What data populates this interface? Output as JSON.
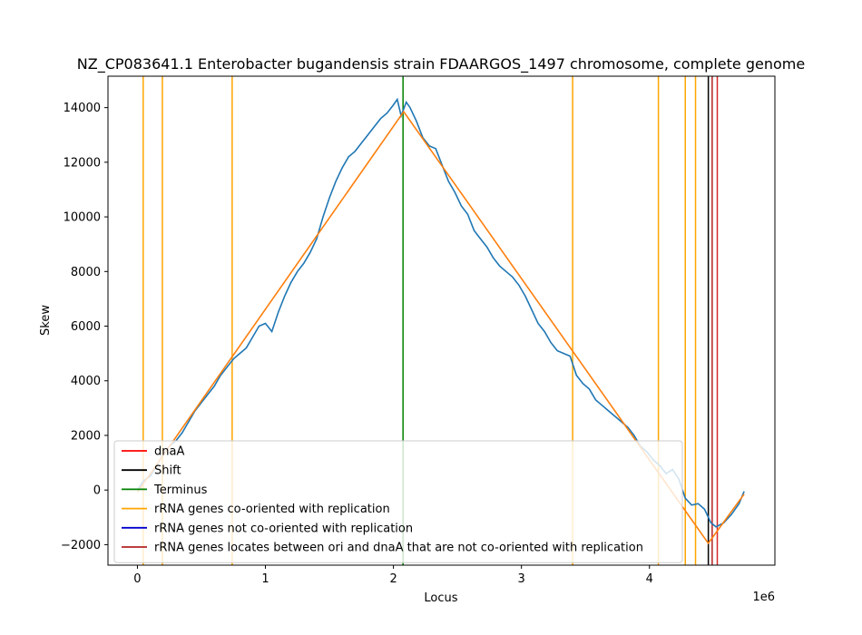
{
  "chart_data": {
    "type": "line",
    "title": "NZ_CP083641.1 Enterobacter bugandensis strain FDAARGOS_1497 chromosome, complete genome",
    "xlabel": "Locus",
    "ylabel": "Skew",
    "x_offset_label": "1e6",
    "xlim": [
      -230000,
      4980000
    ],
    "ylim": [
      -2750,
      15150
    ],
    "x_ticks": [
      0,
      1000000,
      2000000,
      3000000,
      4000000
    ],
    "x_tick_labels": [
      "0",
      "1",
      "2",
      "3",
      "4"
    ],
    "y_ticks": [
      -2000,
      0,
      2000,
      4000,
      6000,
      8000,
      10000,
      12000,
      14000
    ],
    "y_tick_labels": [
      "−2000",
      "0",
      "2000",
      "4000",
      "6000",
      "8000",
      "10000",
      "12000",
      "14000"
    ],
    "grid": false,
    "legend_position": "lower-left",
    "series": [
      {
        "color": "#1f77b4",
        "points": [
          [
            0,
            0
          ],
          [
            50000,
            350
          ],
          [
            100000,
            500
          ],
          [
            150000,
            900
          ],
          [
            200000,
            1300
          ],
          [
            250000,
            1600
          ],
          [
            300000,
            1800
          ],
          [
            350000,
            2100
          ],
          [
            400000,
            2500
          ],
          [
            450000,
            2900
          ],
          [
            500000,
            3200
          ],
          [
            550000,
            3500
          ],
          [
            600000,
            3800
          ],
          [
            650000,
            4200
          ],
          [
            700000,
            4500
          ],
          [
            750000,
            4800
          ],
          [
            800000,
            5000
          ],
          [
            850000,
            5200
          ],
          [
            900000,
            5600
          ],
          [
            950000,
            6000
          ],
          [
            1000000,
            6100
          ],
          [
            1050000,
            5800
          ],
          [
            1100000,
            6500
          ],
          [
            1150000,
            7100
          ],
          [
            1200000,
            7600
          ],
          [
            1250000,
            8000
          ],
          [
            1300000,
            8300
          ],
          [
            1350000,
            8700
          ],
          [
            1400000,
            9200
          ],
          [
            1450000,
            10000
          ],
          [
            1500000,
            10700
          ],
          [
            1550000,
            11300
          ],
          [
            1600000,
            11800
          ],
          [
            1650000,
            12200
          ],
          [
            1700000,
            12400
          ],
          [
            1750000,
            12700
          ],
          [
            1800000,
            13000
          ],
          [
            1850000,
            13300
          ],
          [
            1900000,
            13600
          ],
          [
            1950000,
            13800
          ],
          [
            2000000,
            14100
          ],
          [
            2030000,
            14300
          ],
          [
            2060000,
            13700
          ],
          [
            2100000,
            14200
          ],
          [
            2130000,
            14000
          ],
          [
            2180000,
            13500
          ],
          [
            2230000,
            12900
          ],
          [
            2280000,
            12600
          ],
          [
            2330000,
            12500
          ],
          [
            2380000,
            11900
          ],
          [
            2430000,
            11300
          ],
          [
            2480000,
            10900
          ],
          [
            2530000,
            10400
          ],
          [
            2580000,
            10100
          ],
          [
            2630000,
            9500
          ],
          [
            2680000,
            9200
          ],
          [
            2730000,
            8900
          ],
          [
            2780000,
            8500
          ],
          [
            2830000,
            8200
          ],
          [
            2880000,
            8000
          ],
          [
            2930000,
            7800
          ],
          [
            2980000,
            7500
          ],
          [
            3030000,
            7100
          ],
          [
            3080000,
            6600
          ],
          [
            3130000,
            6100
          ],
          [
            3180000,
            5800
          ],
          [
            3230000,
            5400
          ],
          [
            3280000,
            5100
          ],
          [
            3330000,
            5000
          ],
          [
            3380000,
            4900
          ],
          [
            3430000,
            4200
          ],
          [
            3480000,
            3900
          ],
          [
            3530000,
            3700
          ],
          [
            3580000,
            3300
          ],
          [
            3630000,
            3100
          ],
          [
            3680000,
            2900
          ],
          [
            3730000,
            2700
          ],
          [
            3780000,
            2500
          ],
          [
            3830000,
            2300
          ],
          [
            3880000,
            2000
          ],
          [
            3930000,
            1600
          ],
          [
            3980000,
            1400
          ],
          [
            4030000,
            1100
          ],
          [
            4080000,
            900
          ],
          [
            4130000,
            600
          ],
          [
            4180000,
            750
          ],
          [
            4230000,
            400
          ],
          [
            4280000,
            -300
          ],
          [
            4330000,
            -550
          ],
          [
            4380000,
            -500
          ],
          [
            4430000,
            -700
          ],
          [
            4480000,
            -1200
          ],
          [
            4520000,
            -1350
          ],
          [
            4580000,
            -1200
          ],
          [
            4640000,
            -900
          ],
          [
            4700000,
            -500
          ],
          [
            4740000,
            -50
          ]
        ]
      },
      {
        "color": "#ff7f0e",
        "points": [
          [
            0,
            -80
          ],
          [
            2080000,
            13850
          ],
          [
            4460000,
            -1950
          ],
          [
            4740000,
            -150
          ]
        ]
      }
    ],
    "vertical_lines": [
      {
        "kind": "rrna_co",
        "x": 45000,
        "color": "#ffa500"
      },
      {
        "kind": "rrna_co",
        "x": 195000,
        "color": "#ffa500"
      },
      {
        "kind": "rrna_co",
        "x": 740000,
        "color": "#ffa500"
      },
      {
        "kind": "terminus",
        "x": 2075000,
        "color": "#008000"
      },
      {
        "kind": "rrna_co",
        "x": 3400000,
        "color": "#ffa500"
      },
      {
        "kind": "rrna_co",
        "x": 4070000,
        "color": "#ffa500"
      },
      {
        "kind": "rrna_co",
        "x": 4280000,
        "color": "#ffa500"
      },
      {
        "kind": "rrna_co",
        "x": 4360000,
        "color": "#ffa500"
      },
      {
        "kind": "shift",
        "x": 4460000,
        "color": "#000000"
      },
      {
        "kind": "rrna_between",
        "x": 4490000,
        "color": "#b22222"
      },
      {
        "kind": "dnaA",
        "x": 4530000,
        "color": "#d62728"
      }
    ],
    "legend": [
      {
        "label": "dnaA",
        "color": "#ff0000"
      },
      {
        "label": "Shift",
        "color": "#000000"
      },
      {
        "label": "Terminus",
        "color": "#008000"
      },
      {
        "label": "rRNA genes co-oriented with replication",
        "color": "#ffa500"
      },
      {
        "label": "rRNA genes not co-oriented with replication",
        "color": "#0000cd"
      },
      {
        "label": "rRNA genes locates between ori and dnaA that are not co-oriented with replication",
        "color": "#b22222"
      }
    ]
  }
}
